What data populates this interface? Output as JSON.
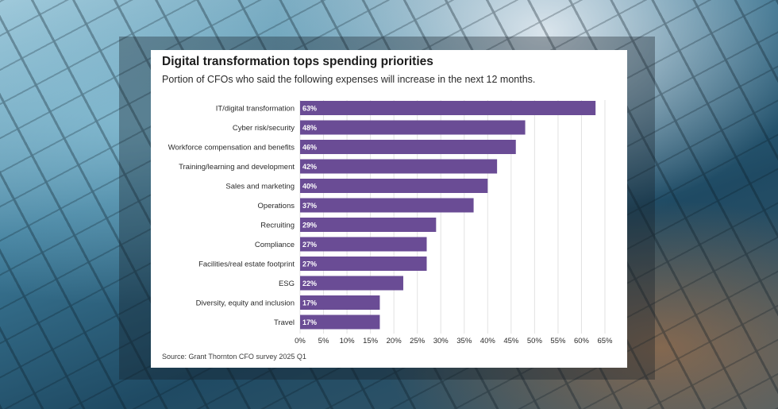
{
  "chart_data": {
    "type": "bar",
    "orientation": "horizontal",
    "title": "Digital transformation tops spending priorities",
    "subtitle": "Portion of CFOs who said the following expenses will increase in the next 12 months.",
    "categories": [
      "IT/digital transformation",
      "Cyber risk/security",
      "Workforce compensation and benefits",
      "Training/learning and development",
      "Sales and marketing",
      "Operations",
      "Recruiting",
      "Compliance",
      "Facilities/real estate footprint",
      "ESG",
      "Diversity, equity and inclusion",
      "Travel"
    ],
    "values": [
      63,
      48,
      46,
      42,
      40,
      37,
      29,
      27,
      27,
      22,
      17,
      17
    ],
    "value_labels": [
      "63%",
      "48%",
      "46%",
      "42%",
      "40%",
      "37%",
      "29%",
      "27%",
      "27%",
      "22%",
      "17%",
      "17%"
    ],
    "xlim": [
      0,
      65
    ],
    "xticks": [
      0,
      5,
      10,
      15,
      20,
      25,
      30,
      35,
      40,
      45,
      50,
      55,
      60,
      65
    ],
    "xtick_labels": [
      "0%",
      "5%",
      "10%",
      "15%",
      "20%",
      "25%",
      "30%",
      "35%",
      "40%",
      "45%",
      "50%",
      "55%",
      "60%",
      "65%"
    ],
    "xlabel": "",
    "ylabel": "",
    "grid": true,
    "bar_color": "#6a4c95",
    "source": "Source: Grant Thornton CFO survey 2025 Q1"
  }
}
